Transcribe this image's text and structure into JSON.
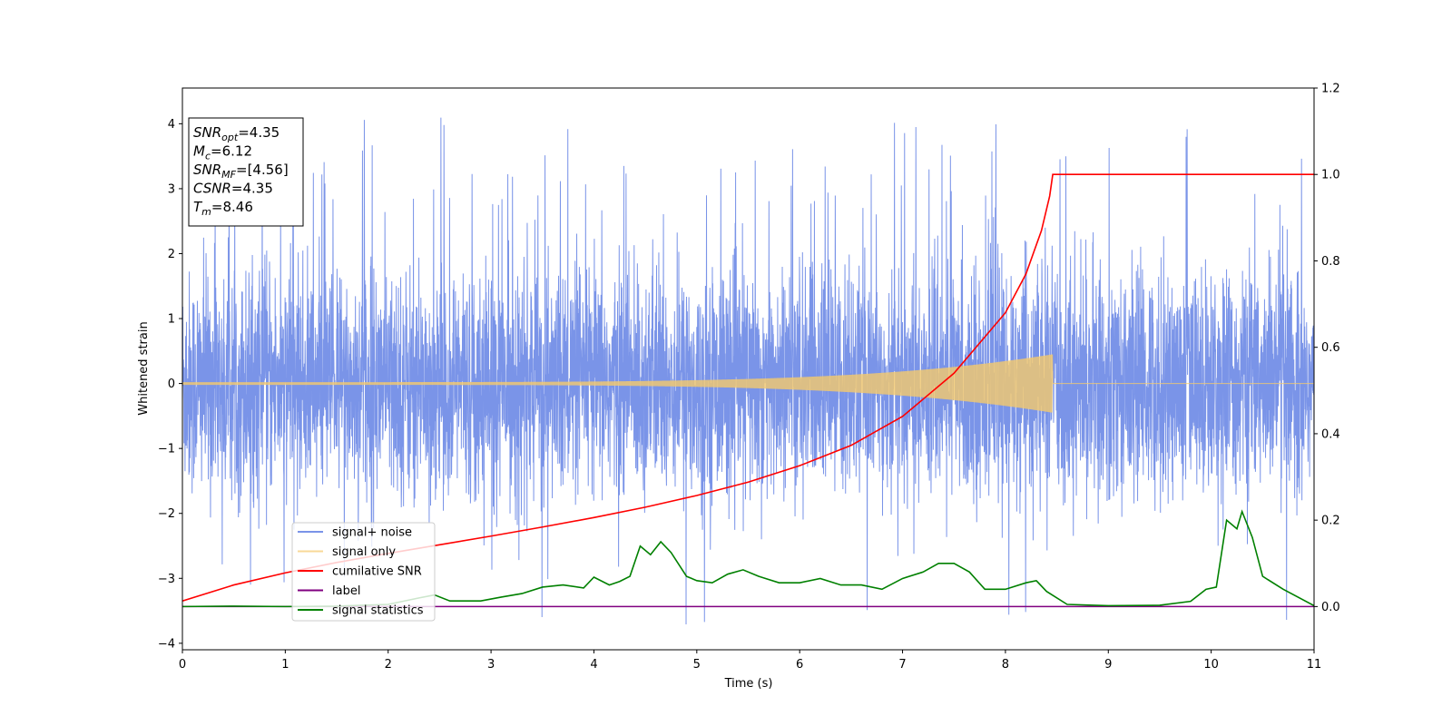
{
  "chart_data": {
    "type": "line",
    "xlabel": "Time (s)",
    "ylabel": "Whitened strain",
    "xlim": [
      0,
      11
    ],
    "ylim_left": [
      -4.1,
      4.55
    ],
    "ylim_right": [
      -0.1,
      1.2
    ],
    "xticks": [
      0,
      1,
      2,
      3,
      4,
      5,
      6,
      7,
      8,
      9,
      10,
      11
    ],
    "xtick_labels": [
      "0",
      "1",
      "2",
      "3",
      "4",
      "5",
      "6",
      "7",
      "8",
      "9",
      "10",
      "11"
    ],
    "yticks_left": [
      -4,
      -3,
      -2,
      -1,
      0,
      1,
      2,
      3,
      4
    ],
    "ytick_labels_left": [
      "−4",
      "−3",
      "−2",
      "−1",
      "0",
      "1",
      "2",
      "3",
      "4"
    ],
    "yticks_right": [
      0.0,
      0.2,
      0.4,
      0.6,
      0.8,
      1.0,
      1.2
    ],
    "ytick_labels_right": [
      "0.0",
      "0.2",
      "0.4",
      "0.6",
      "0.8",
      "1.0",
      "1.2"
    ],
    "grid": false,
    "legend_position": "lower-left",
    "series": [
      {
        "name": "signal+ noise",
        "color": "#6b88e6",
        "axis": "left",
        "description_values": {
          "mean": 0.0,
          "std": 1.0,
          "max_peak": 4.2,
          "min_peak": -3.75
        }
      },
      {
        "name": "signal only",
        "color": "#f5c96b",
        "axis": "left",
        "end_time": 8.46,
        "amplitude_start": 0.02,
        "amplitude_end": 0.45
      },
      {
        "name": "cumilative SNR",
        "color": "#ff0000",
        "axis": "right",
        "points": [
          [
            0.0,
            0.013
          ],
          [
            0.5,
            0.05
          ],
          [
            1.0,
            0.078
          ],
          [
            1.5,
            0.102
          ],
          [
            2.0,
            0.123
          ],
          [
            2.5,
            0.143
          ],
          [
            3.0,
            0.163
          ],
          [
            3.5,
            0.184
          ],
          [
            4.0,
            0.206
          ],
          [
            4.5,
            0.23
          ],
          [
            5.0,
            0.257
          ],
          [
            5.5,
            0.288
          ],
          [
            6.0,
            0.326
          ],
          [
            6.5,
            0.373
          ],
          [
            7.0,
            0.44
          ],
          [
            7.5,
            0.54
          ],
          [
            8.0,
            0.68
          ],
          [
            8.2,
            0.77
          ],
          [
            8.35,
            0.87
          ],
          [
            8.43,
            0.95
          ],
          [
            8.46,
            1.0
          ],
          [
            11.0,
            1.0
          ]
        ]
      },
      {
        "name": "label",
        "color": "#800080",
        "axis": "right",
        "points": [
          [
            0.0,
            0.0
          ],
          [
            11.0,
            0.0
          ]
        ]
      },
      {
        "name": "signal statistics",
        "color": "#008000",
        "axis": "right",
        "points": [
          [
            0.0,
            0.0
          ],
          [
            0.5,
            0.001
          ],
          [
            1.0,
            0.0
          ],
          [
            1.5,
            0.001
          ],
          [
            2.0,
            0.005
          ],
          [
            2.3,
            0.02
          ],
          [
            2.45,
            0.027
          ],
          [
            2.6,
            0.013
          ],
          [
            2.9,
            0.013
          ],
          [
            3.1,
            0.022
          ],
          [
            3.3,
            0.03
          ],
          [
            3.5,
            0.045
          ],
          [
            3.7,
            0.05
          ],
          [
            3.9,
            0.043
          ],
          [
            4.0,
            0.068
          ],
          [
            4.15,
            0.05
          ],
          [
            4.25,
            0.058
          ],
          [
            4.35,
            0.07
          ],
          [
            4.45,
            0.14
          ],
          [
            4.55,
            0.12
          ],
          [
            4.65,
            0.15
          ],
          [
            4.75,
            0.125
          ],
          [
            4.9,
            0.07
          ],
          [
            5.0,
            0.06
          ],
          [
            5.15,
            0.055
          ],
          [
            5.3,
            0.075
          ],
          [
            5.45,
            0.085
          ],
          [
            5.6,
            0.07
          ],
          [
            5.8,
            0.055
          ],
          [
            6.0,
            0.055
          ],
          [
            6.2,
            0.065
          ],
          [
            6.4,
            0.05
          ],
          [
            6.6,
            0.05
          ],
          [
            6.8,
            0.04
          ],
          [
            7.0,
            0.065
          ],
          [
            7.2,
            0.08
          ],
          [
            7.35,
            0.1
          ],
          [
            7.5,
            0.1
          ],
          [
            7.65,
            0.08
          ],
          [
            7.8,
            0.04
          ],
          [
            8.0,
            0.04
          ],
          [
            8.2,
            0.055
          ],
          [
            8.3,
            0.06
          ],
          [
            8.4,
            0.035
          ],
          [
            8.6,
            0.005
          ],
          [
            9.0,
            0.002
          ],
          [
            9.5,
            0.003
          ],
          [
            9.8,
            0.012
          ],
          [
            9.95,
            0.04
          ],
          [
            10.05,
            0.045
          ],
          [
            10.15,
            0.2
          ],
          [
            10.25,
            0.18
          ],
          [
            10.3,
            0.22
          ],
          [
            10.4,
            0.16
          ],
          [
            10.5,
            0.07
          ],
          [
            10.7,
            0.04
          ],
          [
            11.0,
            0.002
          ]
        ]
      }
    ],
    "annotation": {
      "lines": [
        {
          "label": "SNR",
          "sub": "opt",
          "value": "=4.35"
        },
        {
          "label": "M",
          "sub": "c",
          "value": "=6.12"
        },
        {
          "label": "SNR",
          "sub": "MF",
          "value": "=[4.56]"
        },
        {
          "label": "CSNR",
          "sub": "",
          "value": "=4.35"
        },
        {
          "label": "T",
          "sub": "m",
          "value": "=8.46"
        }
      ]
    }
  }
}
